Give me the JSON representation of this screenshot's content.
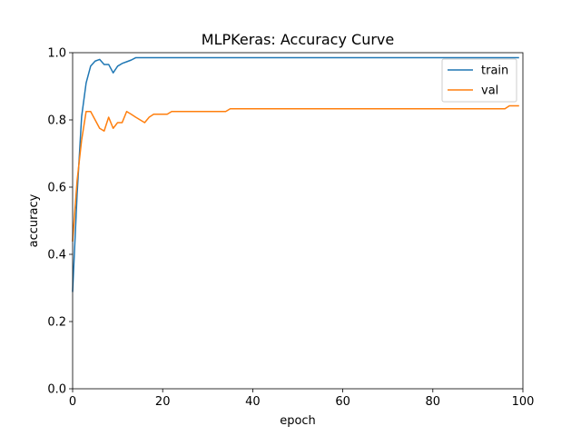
{
  "chart_data": {
    "type": "line",
    "title": "MLPKeras: Accuracy Curve",
    "xlabel": "epoch",
    "ylabel": "accuracy",
    "xlim": [
      0,
      100
    ],
    "ylim": [
      0.0,
      1.0
    ],
    "x_ticks": [
      0,
      20,
      40,
      60,
      80,
      100
    ],
    "x_tick_labels": [
      "0",
      "20",
      "40",
      "60",
      "80",
      "100"
    ],
    "y_ticks": [
      0.0,
      0.2,
      0.4,
      0.6,
      0.8,
      1.0
    ],
    "y_tick_labels": [
      "0.0",
      "0.2",
      "0.4",
      "0.6",
      "0.8",
      "1.0"
    ],
    "grid": false,
    "legend_position": "upper right",
    "series": [
      {
        "name": "train",
        "color": "#1f77b4",
        "points": [
          [
            0,
            0.29
          ],
          [
            1,
            0.58
          ],
          [
            2,
            0.81
          ],
          [
            3,
            0.91
          ],
          [
            4,
            0.96
          ],
          [
            5,
            0.975
          ],
          [
            6,
            0.98
          ],
          [
            7,
            0.965
          ],
          [
            8,
            0.965
          ],
          [
            9,
            0.94
          ],
          [
            10,
            0.96
          ],
          [
            11,
            0.968
          ],
          [
            12,
            0.973
          ],
          [
            13,
            0.978
          ],
          [
            14,
            0.985
          ],
          [
            15,
            0.985
          ],
          [
            20,
            0.985
          ],
          [
            30,
            0.985
          ],
          [
            40,
            0.985
          ],
          [
            50,
            0.985
          ],
          [
            60,
            0.985
          ],
          [
            70,
            0.985
          ],
          [
            80,
            0.985
          ],
          [
            90,
            0.985
          ],
          [
            99,
            0.985
          ]
        ]
      },
      {
        "name": "val",
        "color": "#ff7f0e",
        "points": [
          [
            0,
            0.44
          ],
          [
            1,
            0.62
          ],
          [
            2,
            0.74
          ],
          [
            3,
            0.825
          ],
          [
            4,
            0.825
          ],
          [
            5,
            0.8
          ],
          [
            6,
            0.775
          ],
          [
            7,
            0.767
          ],
          [
            8,
            0.808
          ],
          [
            9,
            0.775
          ],
          [
            10,
            0.792
          ],
          [
            11,
            0.792
          ],
          [
            12,
            0.825
          ],
          [
            13,
            0.817
          ],
          [
            14,
            0.808
          ],
          [
            15,
            0.8
          ],
          [
            16,
            0.792
          ],
          [
            17,
            0.808
          ],
          [
            18,
            0.817
          ],
          [
            19,
            0.817
          ],
          [
            20,
            0.817
          ],
          [
            21,
            0.817
          ],
          [
            22,
            0.825
          ],
          [
            23,
            0.825
          ],
          [
            30,
            0.825
          ],
          [
            34,
            0.825
          ],
          [
            35,
            0.833
          ],
          [
            40,
            0.833
          ],
          [
            50,
            0.833
          ],
          [
            60,
            0.833
          ],
          [
            70,
            0.833
          ],
          [
            80,
            0.833
          ],
          [
            90,
            0.833
          ],
          [
            96,
            0.833
          ],
          [
            97,
            0.842
          ],
          [
            99,
            0.842
          ]
        ]
      }
    ]
  }
}
